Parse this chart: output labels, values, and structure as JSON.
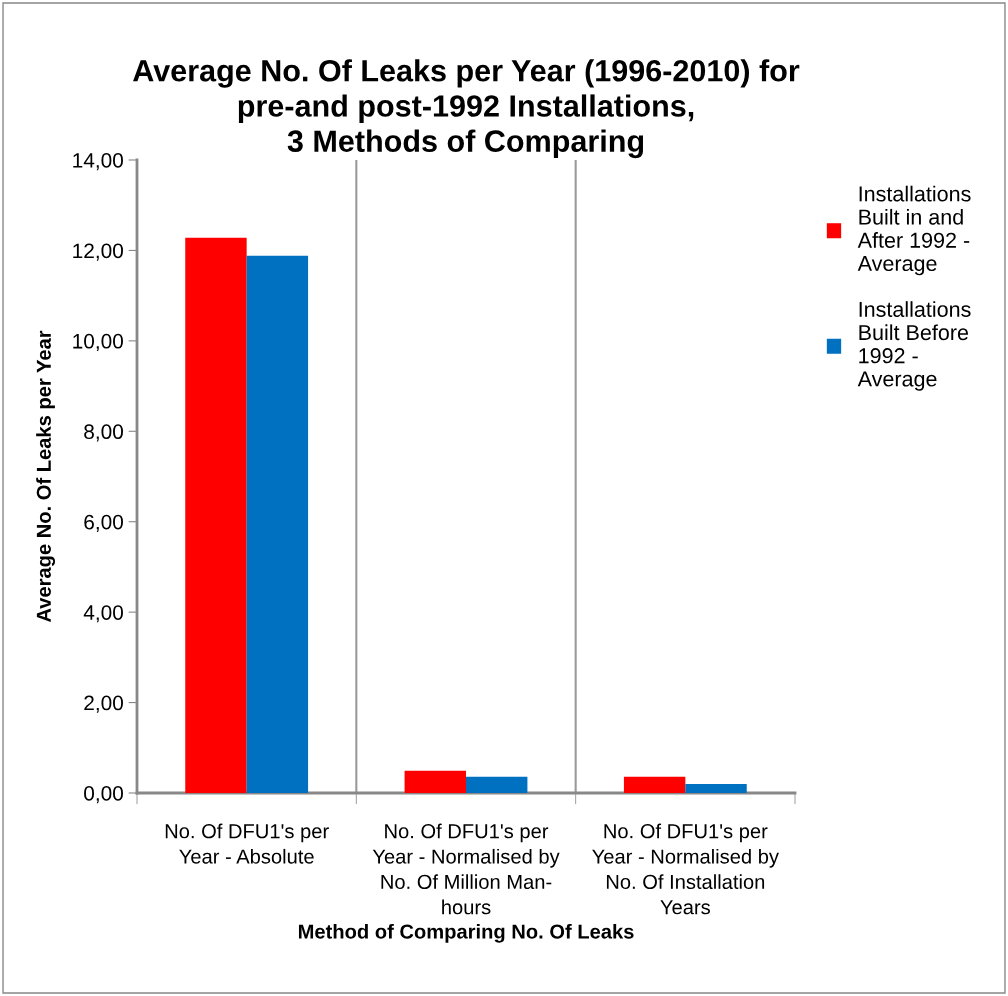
{
  "chart_data": {
    "type": "bar",
    "title": "Average No. Of Leaks per Year (1996-2010) for\npre-and post-1992 Installations,\n3 Methods of Comparing",
    "xlabel": "Method of Comparing No. Of Leaks",
    "ylabel": "Average No. Of Leaks per Year",
    "categories": [
      "No. Of DFU1's per\nYear - Absolute",
      "No. Of DFU1's per\nYear - Normalised by\nNo. Of Million Man-\nhours",
      "No. Of DFU1's per\nYear - Normalised by\nNo. Of Installation\nYears"
    ],
    "series": [
      {
        "name": "Installations\nBuilt in and\nAfter 1992 -\nAverage",
        "color": "#ff0000",
        "values": [
          12.28,
          0.49,
          0.36
        ]
      },
      {
        "name": "Installations\nBuilt Before\n1992 -\nAverage",
        "color": "#0070c0",
        "values": [
          11.88,
          0.36,
          0.2
        ]
      }
    ],
    "ylim": [
      0,
      14
    ],
    "yticks": [
      {
        "value": 0,
        "label": "0,00"
      },
      {
        "value": 2,
        "label": "2,00"
      },
      {
        "value": 4,
        "label": "4,00"
      },
      {
        "value": 6,
        "label": "6,00"
      },
      {
        "value": 8,
        "label": "8,00"
      },
      {
        "value": 10,
        "label": "10,00"
      },
      {
        "value": 12,
        "label": "12,00"
      },
      {
        "value": 14,
        "label": "14,00"
      }
    ],
    "grid": "x",
    "legend": "right"
  }
}
